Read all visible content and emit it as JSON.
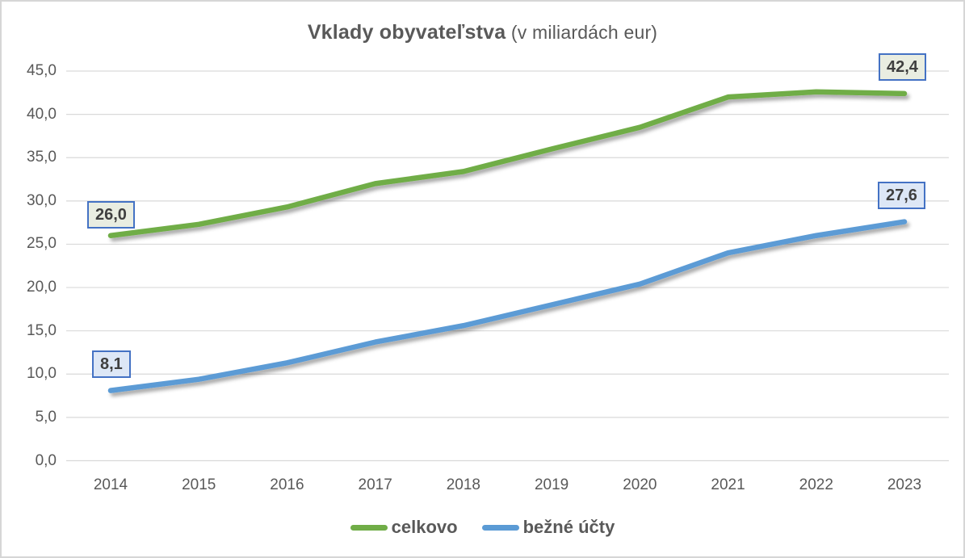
{
  "title": {
    "main": "Vklady obyvateľstva",
    "suffix": "(v miliardách eur)"
  },
  "colors": {
    "celkovo_line": "#70AD47",
    "bezne_ucty_line": "#5B9BD5",
    "gridline": "#D9D9D9",
    "axis_text": "#595959",
    "annotation_border": "#4472C4",
    "annotation_fill_celkovo": "#E9EDE1",
    "annotation_fill_bezne_ucty": "#DDE7F6",
    "frame_border": "#D6D6D6"
  },
  "chart_data": {
    "type": "line",
    "title": "Vklady obyvateľstva (v miliardách eur)",
    "xlabel": "",
    "ylabel": "",
    "categories": [
      "2014",
      "2015",
      "2016",
      "2017",
      "2018",
      "2019",
      "2020",
      "2021",
      "2022",
      "2023"
    ],
    "series": [
      {
        "name": "celkovo",
        "color": "#70AD47",
        "values": [
          26.0,
          27.3,
          29.3,
          32.0,
          33.4,
          36.0,
          38.5,
          42.0,
          42.6,
          42.4
        ]
      },
      {
        "name": "bežné účty",
        "color": "#5B9BD5",
        "values": [
          8.1,
          9.4,
          11.3,
          13.7,
          15.6,
          18.0,
          20.4,
          24.0,
          26.0,
          27.6
        ]
      }
    ],
    "ylim": [
      0,
      45
    ],
    "ytick_step": 5,
    "ytick_labels": [
      "0,0",
      "5,0",
      "10,0",
      "15,0",
      "20,0",
      "25,0",
      "30,0",
      "35,0",
      "40,0",
      "45,0"
    ],
    "grid": true,
    "legend_position": "bottom",
    "annotations": [
      {
        "series": "celkovo",
        "x": "2014",
        "text": "26,0",
        "fill": "#E9EDE1",
        "border": "#4472C4"
      },
      {
        "series": "celkovo",
        "x": "2023",
        "text": "42,4",
        "fill": "#E9EDE1",
        "border": "#4472C4"
      },
      {
        "series": "bežné účty",
        "x": "2014",
        "text": "8,1",
        "fill": "#DDE7F6",
        "border": "#4472C4"
      },
      {
        "series": "bežné účty",
        "x": "2023",
        "text": "27,6",
        "fill": "#DDE7F6",
        "border": "#4472C4"
      }
    ]
  }
}
